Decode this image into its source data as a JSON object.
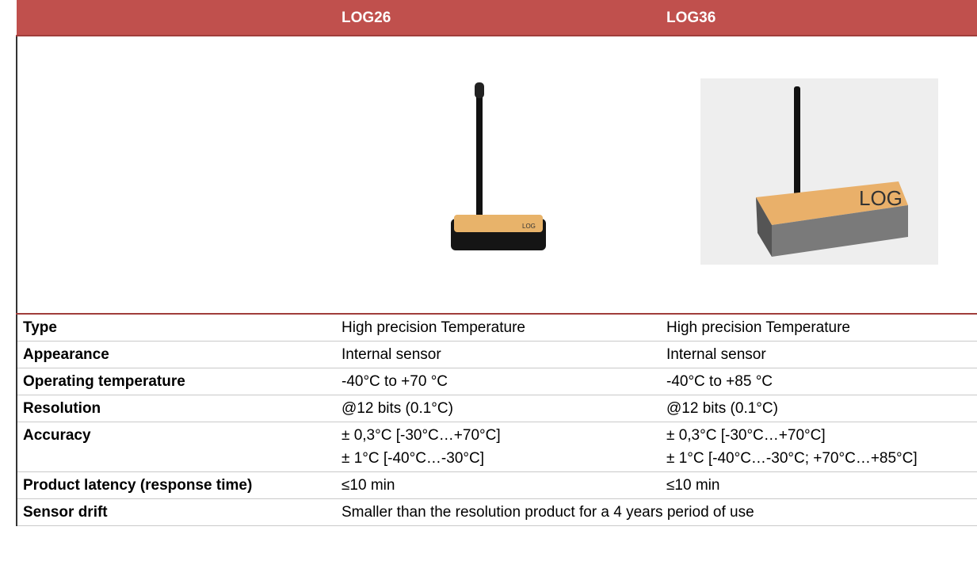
{
  "header": {
    "col1": "LOG26",
    "col2": "LOG36"
  },
  "rows": [
    {
      "label": "Type",
      "cells": [
        [
          "High precision Temperature"
        ],
        [
          "High precision Temperature"
        ]
      ]
    },
    {
      "label": "Appearance",
      "cells": [
        [
          "Internal sensor"
        ],
        [
          "Internal sensor"
        ]
      ]
    },
    {
      "label": "Operating temperature",
      "cells": [
        [
          "-40°C to +70 °C"
        ],
        [
          "-40°C to +85 °C"
        ]
      ]
    },
    {
      "label": "Resolution",
      "cells": [
        [
          "@12 bits (0.1°C)"
        ],
        [
          "@12 bits (0.1°C)"
        ]
      ]
    },
    {
      "label": "Accuracy",
      "cells": [
        [
          "± 0,3°C [-30°C…+70°C]",
          "± 1°C [-40°C…-30°C]"
        ],
        [
          "± 0,3°C [-30°C…+70°C]",
          "± 1°C [-40°C…-30°C; +70°C…+85°C]"
        ]
      ]
    },
    {
      "label": "Product latency (response time)",
      "cells": [
        [
          "≤10 min"
        ],
        [
          "≤10 min"
        ]
      ]
    },
    {
      "label": "Sensor drift",
      "cells": [
        [
          "Smaller than the resolution product for a 4 years period of use"
        ]
      ]
    }
  ]
}
